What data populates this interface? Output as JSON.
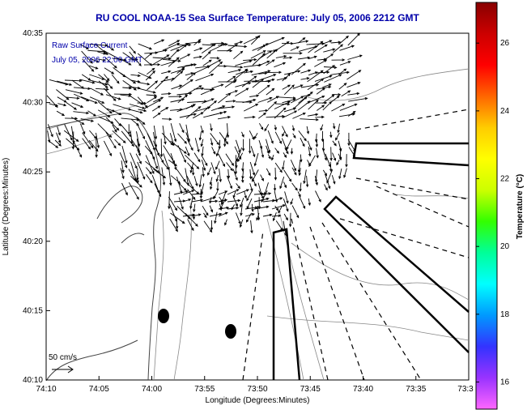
{
  "map": {
    "title": "RU COOL  NOAA-15  Sea Surface Temperature:  July 05, 2006 2212 GMT",
    "legend_line1": "Raw Surface Current",
    "legend_line2": "July 05, 2006 22:00 GMT",
    "scale_label": "50 cm/s",
    "x_axis_label": "Longitude (Degrees:Minutes)",
    "y_axis_label": "Latitude (Degrees:Minutes)",
    "x_ticks": [
      "74:10",
      "74:05",
      "74:00",
      "73:55",
      "73:50",
      "73:45",
      "73:40",
      "73:35",
      "73:3"
    ],
    "y_ticks": [
      "40:35",
      "40:30",
      "40:25",
      "40:20",
      "40:15",
      "40:10"
    ]
  },
  "colorbar": {
    "label": "Temperature (°C)",
    "ticks": [
      "26",
      "24",
      "22",
      "20",
      "18",
      "16"
    ],
    "range": [
      15.2,
      27.2
    ],
    "colors": [
      "#ff66ff",
      "#9933ff",
      "#3333ff",
      "#0099ff",
      "#00ffff",
      "#00ff99",
      "#33ff00",
      "#ccff00",
      "#ffff00",
      "#ffcc00",
      "#ff6600",
      "#ff0000",
      "#cc0000",
      "#880000"
    ]
  }
}
